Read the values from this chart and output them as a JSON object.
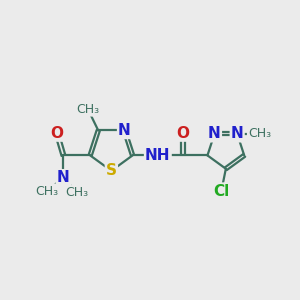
{
  "bg_color": "#ebebeb",
  "bond_color": "#3d7060",
  "bond_width": 1.6,
  "dbo": 0.055,
  "atoms": {
    "S": {
      "color": "#ccaa00"
    },
    "N": {
      "color": "#2020cc"
    },
    "O": {
      "color": "#cc2020"
    },
    "Cl": {
      "color": "#22aa22"
    },
    "bond": {
      "color": "#3d7060"
    }
  },
  "figsize": [
    3.0,
    3.0
  ],
  "dpi": 100,
  "xlim": [
    0,
    10
  ],
  "ylim": [
    0,
    10
  ]
}
